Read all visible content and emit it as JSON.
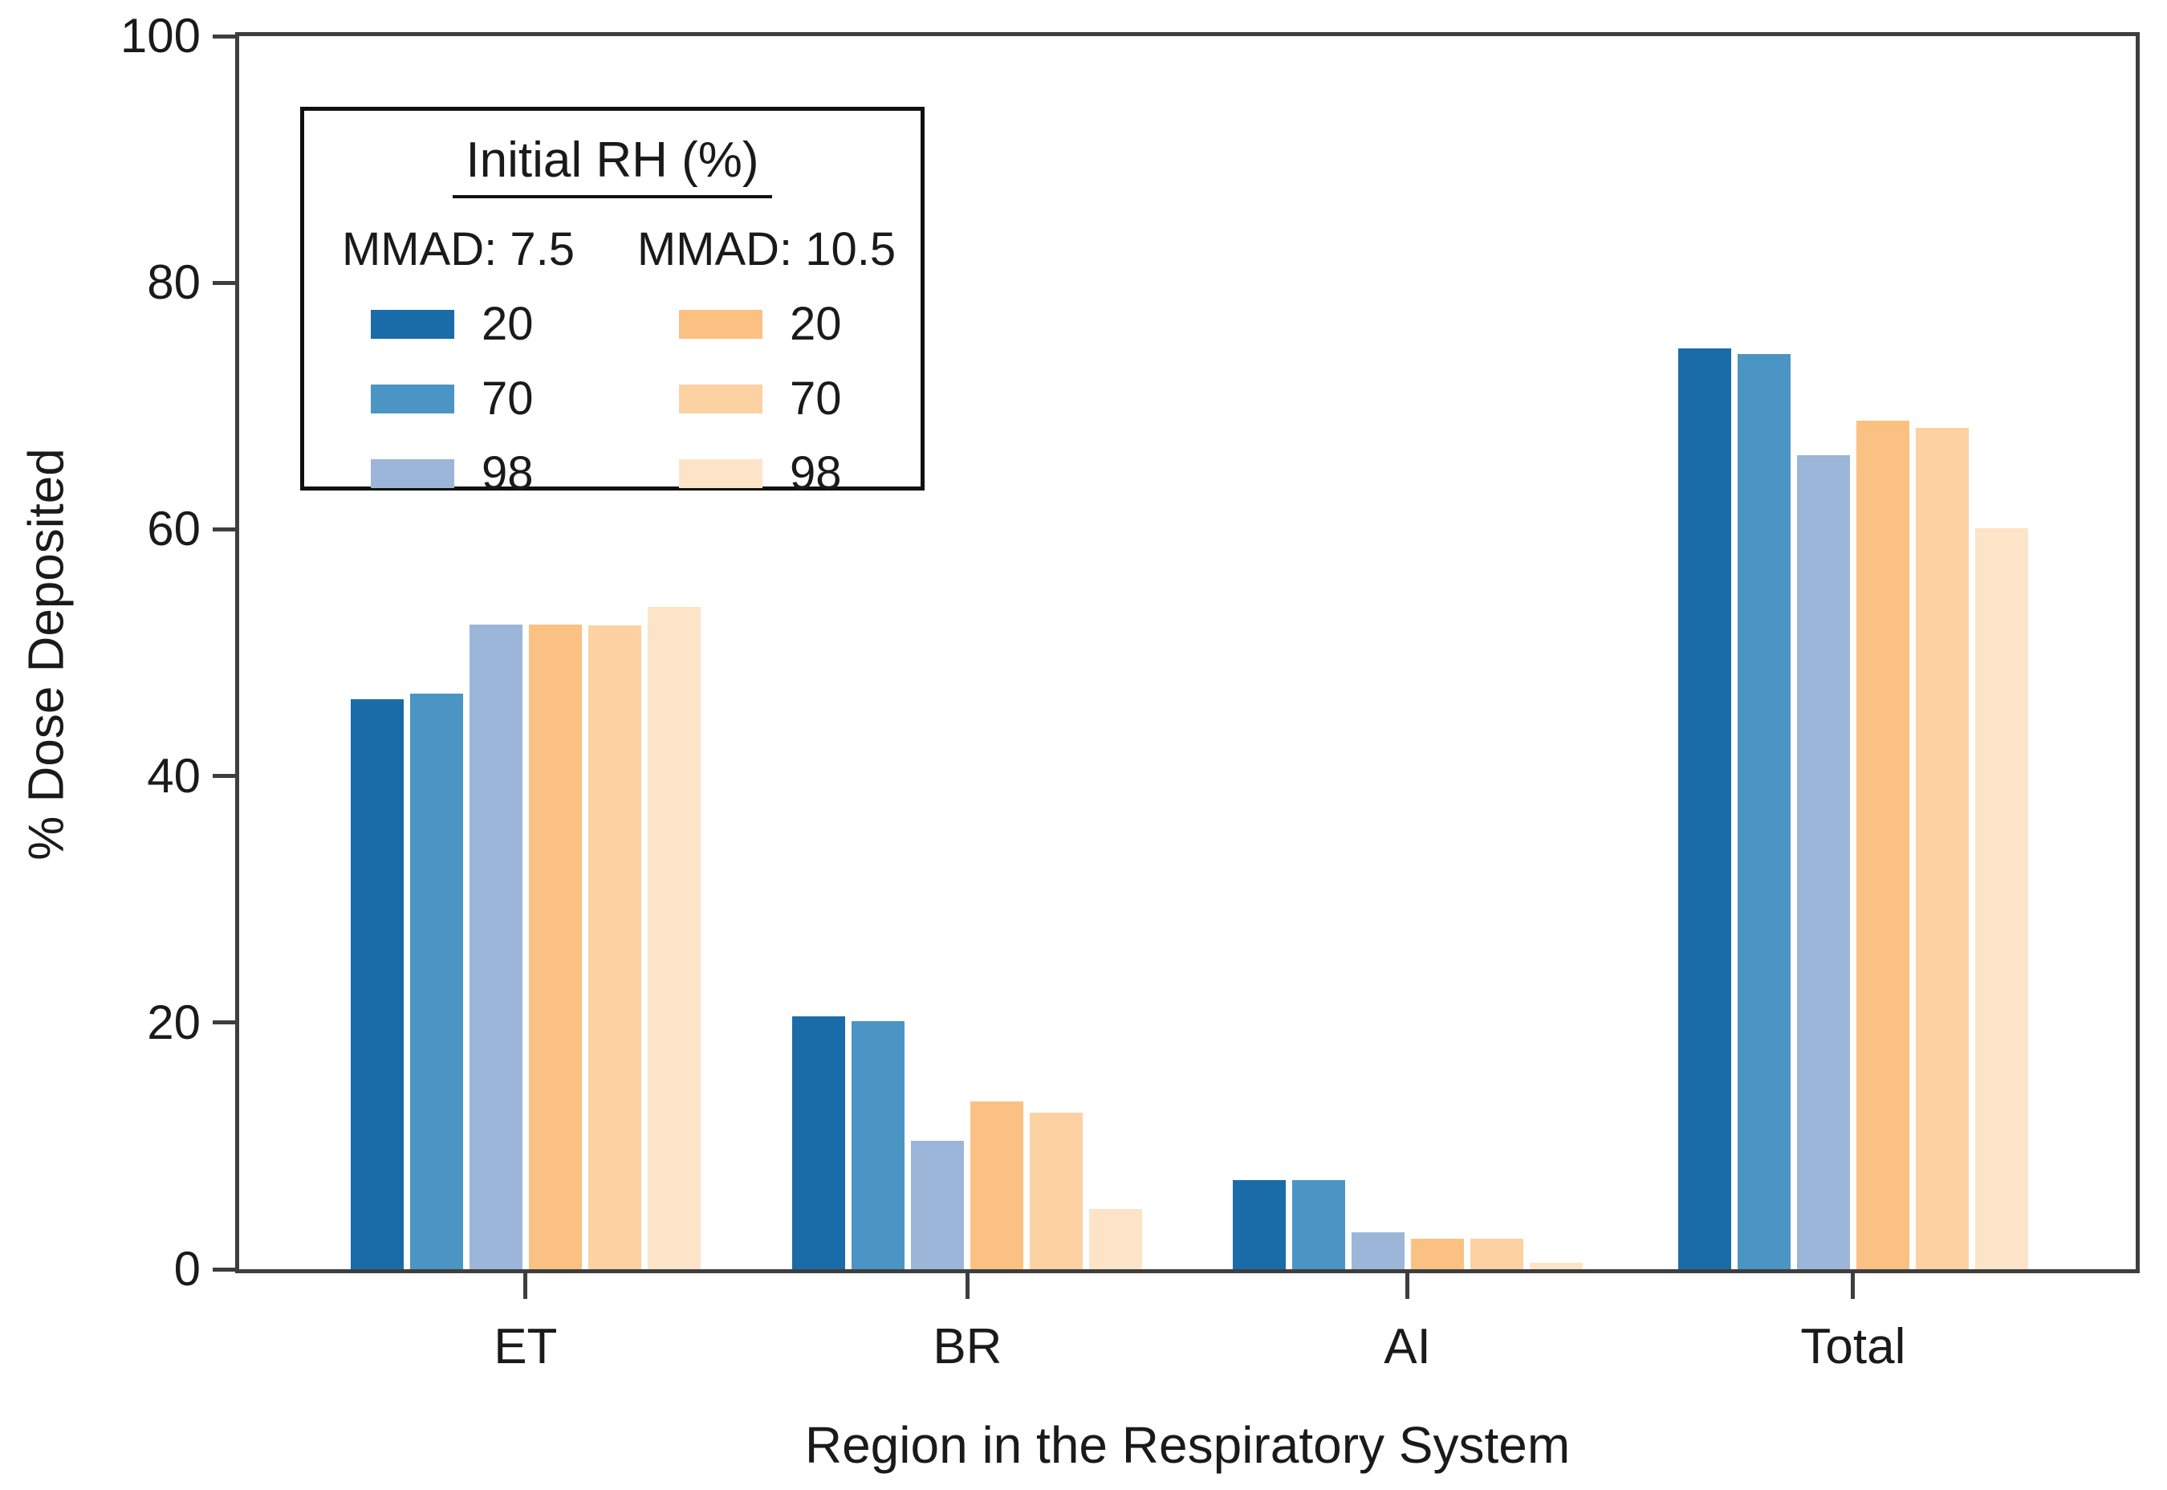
{
  "chart_data": {
    "type": "bar",
    "title": "",
    "xlabel": "Region in the Respiratory System",
    "ylabel": "% Dose Deposited",
    "ylim": [
      0,
      100
    ],
    "yticks": [
      0,
      20,
      40,
      60,
      80,
      100
    ],
    "grid": false,
    "categories": [
      "ET",
      "BR",
      "AI",
      "Total"
    ],
    "series": [
      {
        "name": "MMAD 7.5 - RH 20",
        "color": "#1A6CA8",
        "values": [
          46.2,
          20.5,
          7.2,
          74.7
        ]
      },
      {
        "name": "MMAD 7.5 - RH 70",
        "color": "#4A95C3",
        "values": [
          46.7,
          20.1,
          7.2,
          74.2
        ]
      },
      {
        "name": "MMAD 7.5 - RH 98",
        "color": "#9BB6D9",
        "values": [
          52.3,
          10.4,
          3.0,
          66.0
        ]
      },
      {
        "name": "MMAD 10.5 - RH 20",
        "color": "#FBC183",
        "values": [
          52.3,
          13.6,
          2.5,
          68.8
        ]
      },
      {
        "name": "MMAD 10.5 - RH 70",
        "color": "#FCD2A2",
        "values": [
          52.2,
          12.7,
          2.5,
          68.2
        ]
      },
      {
        "name": "MMAD 10.5 - RH 98",
        "color": "#FDE4C8",
        "values": [
          53.7,
          4.9,
          0.5,
          60.1
        ]
      }
    ],
    "legend": {
      "title": "Initial RH (%)",
      "position": "upper left",
      "groups": [
        {
          "header": "MMAD: 7.5",
          "entries": [
            {
              "label": "20",
              "color": "#1A6CA8"
            },
            {
              "label": "70",
              "color": "#4A95C3"
            },
            {
              "label": "98",
              "color": "#9BB6D9"
            }
          ]
        },
        {
          "header": "MMAD: 10.5",
          "entries": [
            {
              "label": "20",
              "color": "#FBC183"
            },
            {
              "label": "70",
              "color": "#FCD2A2"
            },
            {
              "label": "98",
              "color": "#FDE4C8"
            }
          ]
        }
      ]
    },
    "colors": {
      "axis": "#3E3E3E",
      "text": "#1A1A1A",
      "legend_border": "#101010",
      "background": "#FFFFFF"
    }
  }
}
